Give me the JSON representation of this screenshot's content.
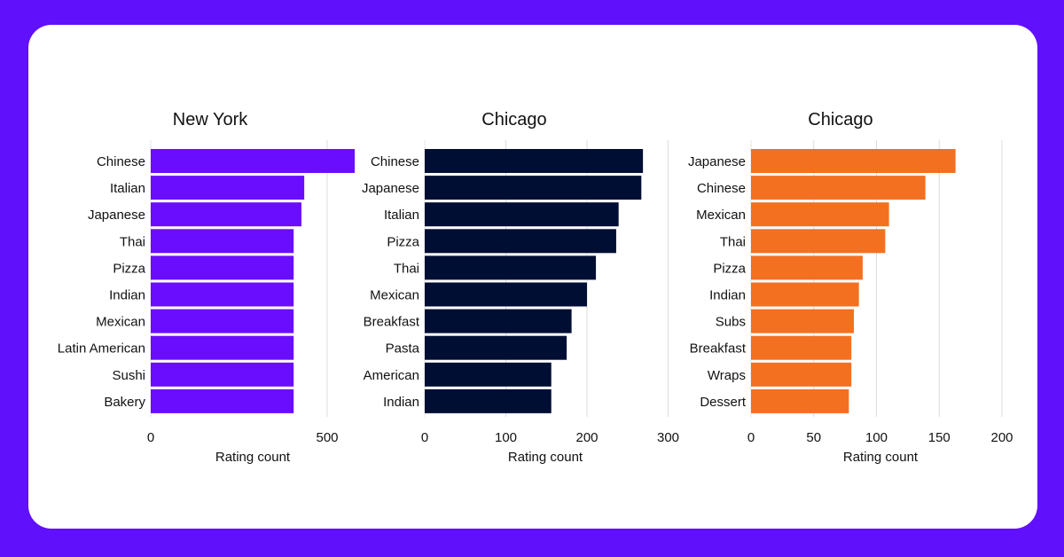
{
  "chart_data": [
    {
      "type": "bar",
      "orientation": "horizontal",
      "title": "New York",
      "xlabel": "Rating count",
      "ylabel": "",
      "xlim": [
        0,
        580
      ],
      "xticks": [
        0,
        500
      ],
      "color": "#6a0dff",
      "categories": [
        "Chinese",
        "Italian",
        "Japanese",
        "Thai",
        "Pizza",
        "Indian",
        "Mexican",
        "Latin American",
        "Sushi",
        "Bakery"
      ],
      "values": [
        578,
        435,
        427,
        405,
        405,
        405,
        405,
        405,
        405,
        405
      ]
    },
    {
      "type": "bar",
      "orientation": "horizontal",
      "title": "Chicago",
      "xlabel": "Rating count",
      "ylabel": "",
      "xlim": [
        0,
        300
      ],
      "xticks": [
        0,
        100,
        200,
        300
      ],
      "color": "#000e33",
      "categories": [
        "Chinese",
        "Japanese",
        "Italian",
        "Pizza",
        "Thai",
        "Mexican",
        "Breakfast",
        "Pasta",
        "American",
        "Indian"
      ],
      "values": [
        269,
        267,
        239,
        236,
        211,
        200,
        181,
        175,
        156,
        156
      ]
    },
    {
      "type": "bar",
      "orientation": "horizontal",
      "title": "Chicago",
      "xlabel": "Rating count",
      "ylabel": "",
      "xlim": [
        0,
        200
      ],
      "xticks": [
        0,
        50,
        100,
        150,
        200
      ],
      "color": "#f37021",
      "categories": [
        "Japanese",
        "Chinese",
        "Mexican",
        "Thai",
        "Pizza",
        "Indian",
        "Subs",
        "Breakfast",
        "Wraps",
        "Dessert"
      ],
      "values": [
        163,
        139,
        110,
        107,
        89,
        86,
        82,
        80,
        80,
        78
      ]
    }
  ]
}
